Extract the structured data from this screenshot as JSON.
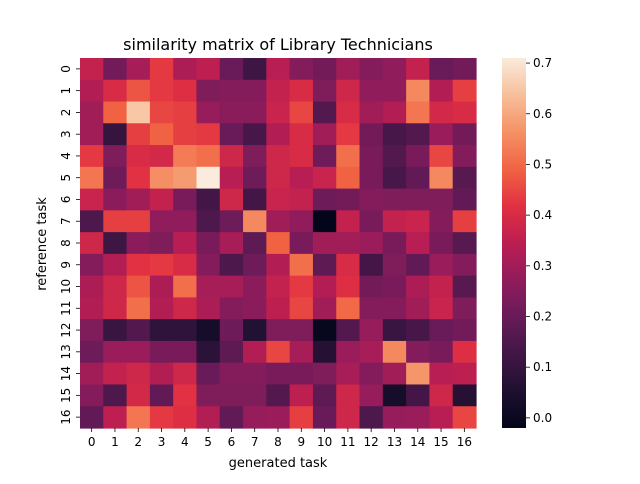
{
  "chart_data": {
    "type": "heatmap",
    "title": "similarity matrix of Library Technicians",
    "xlabel": "generated task",
    "ylabel": "reference task",
    "x_categories": [
      "0",
      "1",
      "2",
      "3",
      "4",
      "5",
      "6",
      "7",
      "8",
      "9",
      "10",
      "11",
      "12",
      "13",
      "14",
      "15",
      "16"
    ],
    "y_categories": [
      "0",
      "1",
      "2",
      "3",
      "4",
      "5",
      "6",
      "7",
      "8",
      "9",
      "10",
      "11",
      "12",
      "13",
      "14",
      "15",
      "16"
    ],
    "colormap": "rocket",
    "vmin": -0.02,
    "vmax": 0.71,
    "colorbar_ticks": [
      "0.0",
      "0.1",
      "0.2",
      "0.3",
      "0.4",
      "0.5",
      "0.6",
      "0.7"
    ],
    "colorbar_tick_values": [
      0.0,
      0.1,
      0.2,
      0.3,
      0.4,
      0.5,
      0.6,
      0.7
    ],
    "values": [
      [
        0.36,
        0.22,
        0.31,
        0.43,
        0.32,
        0.35,
        0.2,
        0.12,
        0.34,
        0.25,
        0.22,
        0.3,
        0.25,
        0.27,
        0.36,
        0.2,
        0.22
      ],
      [
        0.33,
        0.4,
        0.47,
        0.43,
        0.41,
        0.24,
        0.25,
        0.25,
        0.36,
        0.4,
        0.24,
        0.38,
        0.27,
        0.27,
        0.55,
        0.33,
        0.44
      ],
      [
        0.3,
        0.49,
        0.65,
        0.45,
        0.44,
        0.28,
        0.26,
        0.26,
        0.37,
        0.45,
        0.16,
        0.4,
        0.3,
        0.33,
        0.52,
        0.39,
        0.4
      ],
      [
        0.3,
        0.1,
        0.44,
        0.49,
        0.44,
        0.43,
        0.2,
        0.14,
        0.33,
        0.4,
        0.3,
        0.43,
        0.22,
        0.14,
        0.16,
        0.29,
        0.22
      ],
      [
        0.43,
        0.24,
        0.4,
        0.39,
        0.53,
        0.51,
        0.38,
        0.24,
        0.38,
        0.4,
        0.21,
        0.51,
        0.23,
        0.16,
        0.23,
        0.45,
        0.25
      ],
      [
        0.52,
        0.21,
        0.42,
        0.56,
        0.58,
        0.71,
        0.34,
        0.21,
        0.38,
        0.34,
        0.37,
        0.49,
        0.23,
        0.14,
        0.19,
        0.55,
        0.17
      ],
      [
        0.37,
        0.26,
        0.3,
        0.36,
        0.23,
        0.13,
        0.38,
        0.13,
        0.37,
        0.36,
        0.21,
        0.22,
        0.25,
        0.24,
        0.24,
        0.24,
        0.19
      ],
      [
        0.15,
        0.44,
        0.44,
        0.27,
        0.27,
        0.15,
        0.21,
        0.55,
        0.3,
        0.27,
        -0.02,
        0.36,
        0.23,
        0.36,
        0.37,
        0.25,
        0.44
      ],
      [
        0.38,
        0.12,
        0.26,
        0.24,
        0.34,
        0.23,
        0.31,
        0.18,
        0.49,
        0.23,
        0.3,
        0.3,
        0.29,
        0.23,
        0.34,
        0.23,
        0.17
      ],
      [
        0.25,
        0.33,
        0.42,
        0.43,
        0.4,
        0.25,
        0.15,
        0.21,
        0.33,
        0.51,
        0.18,
        0.4,
        0.13,
        0.24,
        0.19,
        0.29,
        0.25
      ],
      [
        0.32,
        0.38,
        0.47,
        0.32,
        0.51,
        0.31,
        0.31,
        0.26,
        0.36,
        0.43,
        0.33,
        0.41,
        0.22,
        0.23,
        0.32,
        0.36,
        0.17
      ],
      [
        0.33,
        0.38,
        0.51,
        0.33,
        0.38,
        0.32,
        0.25,
        0.26,
        0.35,
        0.45,
        0.3,
        0.5,
        0.25,
        0.25,
        0.3,
        0.37,
        0.24
      ],
      [
        0.24,
        0.11,
        0.16,
        0.09,
        0.09,
        0.03,
        0.21,
        0.06,
        0.24,
        0.24,
        -0.01,
        0.16,
        0.28,
        0.11,
        0.14,
        0.2,
        0.22
      ],
      [
        0.21,
        0.29,
        0.29,
        0.23,
        0.23,
        0.08,
        0.18,
        0.33,
        0.45,
        0.31,
        0.07,
        0.29,
        0.31,
        0.55,
        0.25,
        0.23,
        0.41
      ],
      [
        0.3,
        0.36,
        0.38,
        0.33,
        0.38,
        0.2,
        0.25,
        0.25,
        0.23,
        0.23,
        0.24,
        0.31,
        0.25,
        0.3,
        0.57,
        0.34,
        0.35
      ],
      [
        0.25,
        0.15,
        0.39,
        0.19,
        0.42,
        0.24,
        0.24,
        0.24,
        0.16,
        0.35,
        0.18,
        0.38,
        0.28,
        0.03,
        0.13,
        0.38,
        0.07
      ],
      [
        0.19,
        0.35,
        0.52,
        0.43,
        0.41,
        0.33,
        0.19,
        0.28,
        0.29,
        0.44,
        0.2,
        0.38,
        0.15,
        0.28,
        0.29,
        0.34,
        0.45
      ]
    ]
  }
}
